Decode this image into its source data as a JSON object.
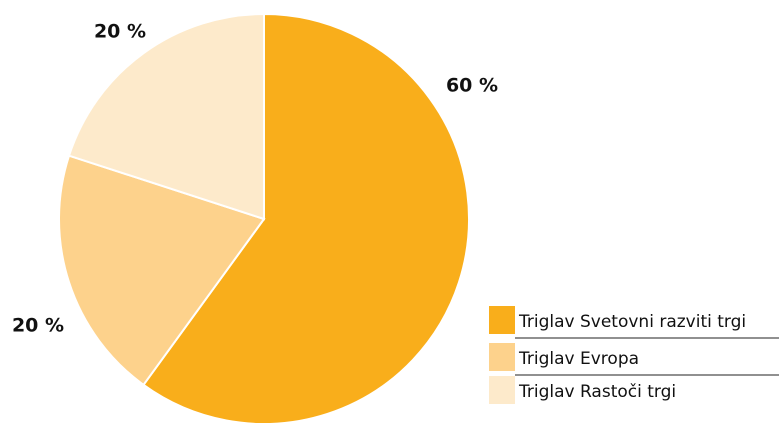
{
  "chart_data": {
    "type": "pie",
    "categories": [
      "Triglav Svetovni razviti trgi",
      "Triglav Evropa",
      "Triglav Rastoči trgi"
    ],
    "values": [
      60,
      20,
      20
    ],
    "value_labels": [
      "60 %",
      "20 %",
      "20 %"
    ],
    "colors": [
      "#f9ae1b",
      "#fdd28c",
      "#fdeacb"
    ],
    "legend": "bottom-right"
  }
}
